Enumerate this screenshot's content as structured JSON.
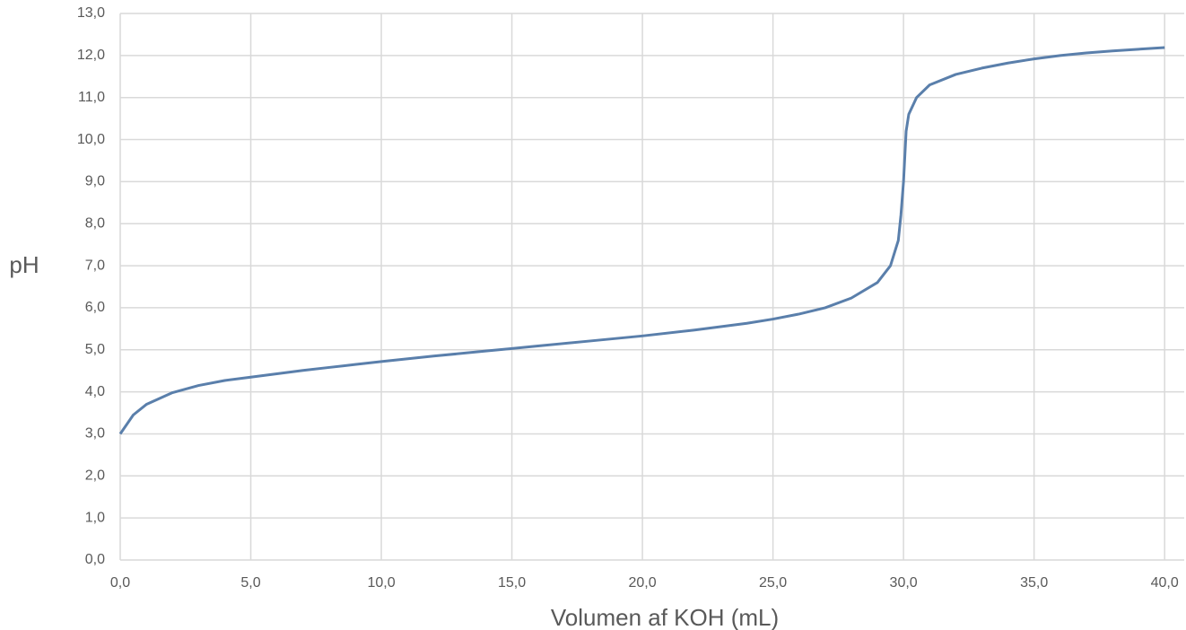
{
  "chart_data": {
    "type": "line",
    "x_label": "Volumen af KOH (mL)",
    "y_label": "pH",
    "x": [
      0,
      0.5,
      1,
      2,
      3,
      4,
      5,
      6,
      7,
      8,
      9,
      10,
      12,
      14,
      15,
      16,
      18,
      20,
      22,
      24,
      25,
      26,
      27,
      28,
      29,
      29.5,
      29.8,
      29.9,
      30,
      30.1,
      30.2,
      30.5,
      31,
      32,
      33,
      34,
      35,
      36,
      37,
      38,
      39,
      40
    ],
    "series": [
      {
        "color": "#5a7fab",
        "values": [
          3.0,
          3.45,
          3.7,
          3.98,
          4.15,
          4.27,
          4.35,
          4.43,
          4.51,
          4.58,
          4.65,
          4.72,
          4.85,
          4.97,
          5.03,
          5.09,
          5.21,
          5.33,
          5.47,
          5.63,
          5.73,
          5.85,
          6.0,
          6.23,
          6.6,
          7.0,
          7.6,
          8.2,
          9.0,
          10.2,
          10.6,
          11.0,
          11.3,
          11.55,
          11.7,
          11.82,
          11.92,
          12.0,
          12.06,
          12.11,
          12.15,
          12.19
        ]
      }
    ],
    "xlim": [
      0,
      40.75
    ],
    "ylim": [
      0,
      13
    ],
    "xticks": [
      {
        "value": 0,
        "label": "0,0"
      },
      {
        "value": 5,
        "label": "5,0"
      },
      {
        "value": 10,
        "label": "10,0"
      },
      {
        "value": 15,
        "label": "15,0"
      },
      {
        "value": 20,
        "label": "20,0"
      },
      {
        "value": 25,
        "label": "25,0"
      },
      {
        "value": 30,
        "label": "30,0"
      },
      {
        "value": 35,
        "label": "35,0"
      },
      {
        "value": 40,
        "label": "40,0"
      }
    ],
    "yticks": [
      {
        "value": 0,
        "label": "0,0"
      },
      {
        "value": 1,
        "label": "1,0"
      },
      {
        "value": 2,
        "label": "2,0"
      },
      {
        "value": 3,
        "label": "3,0"
      },
      {
        "value": 4,
        "label": "4,0"
      },
      {
        "value": 5,
        "label": "5,0"
      },
      {
        "value": 6,
        "label": "6,0"
      },
      {
        "value": 7,
        "label": "7,0"
      },
      {
        "value": 8,
        "label": "8,0"
      },
      {
        "value": 9,
        "label": "9,0"
      },
      {
        "value": 10,
        "label": "10,0"
      },
      {
        "value": 11,
        "label": "11,0"
      },
      {
        "value": 12,
        "label": "12,0"
      },
      {
        "value": 13,
        "label": "13,0"
      }
    ],
    "grid": true
  }
}
